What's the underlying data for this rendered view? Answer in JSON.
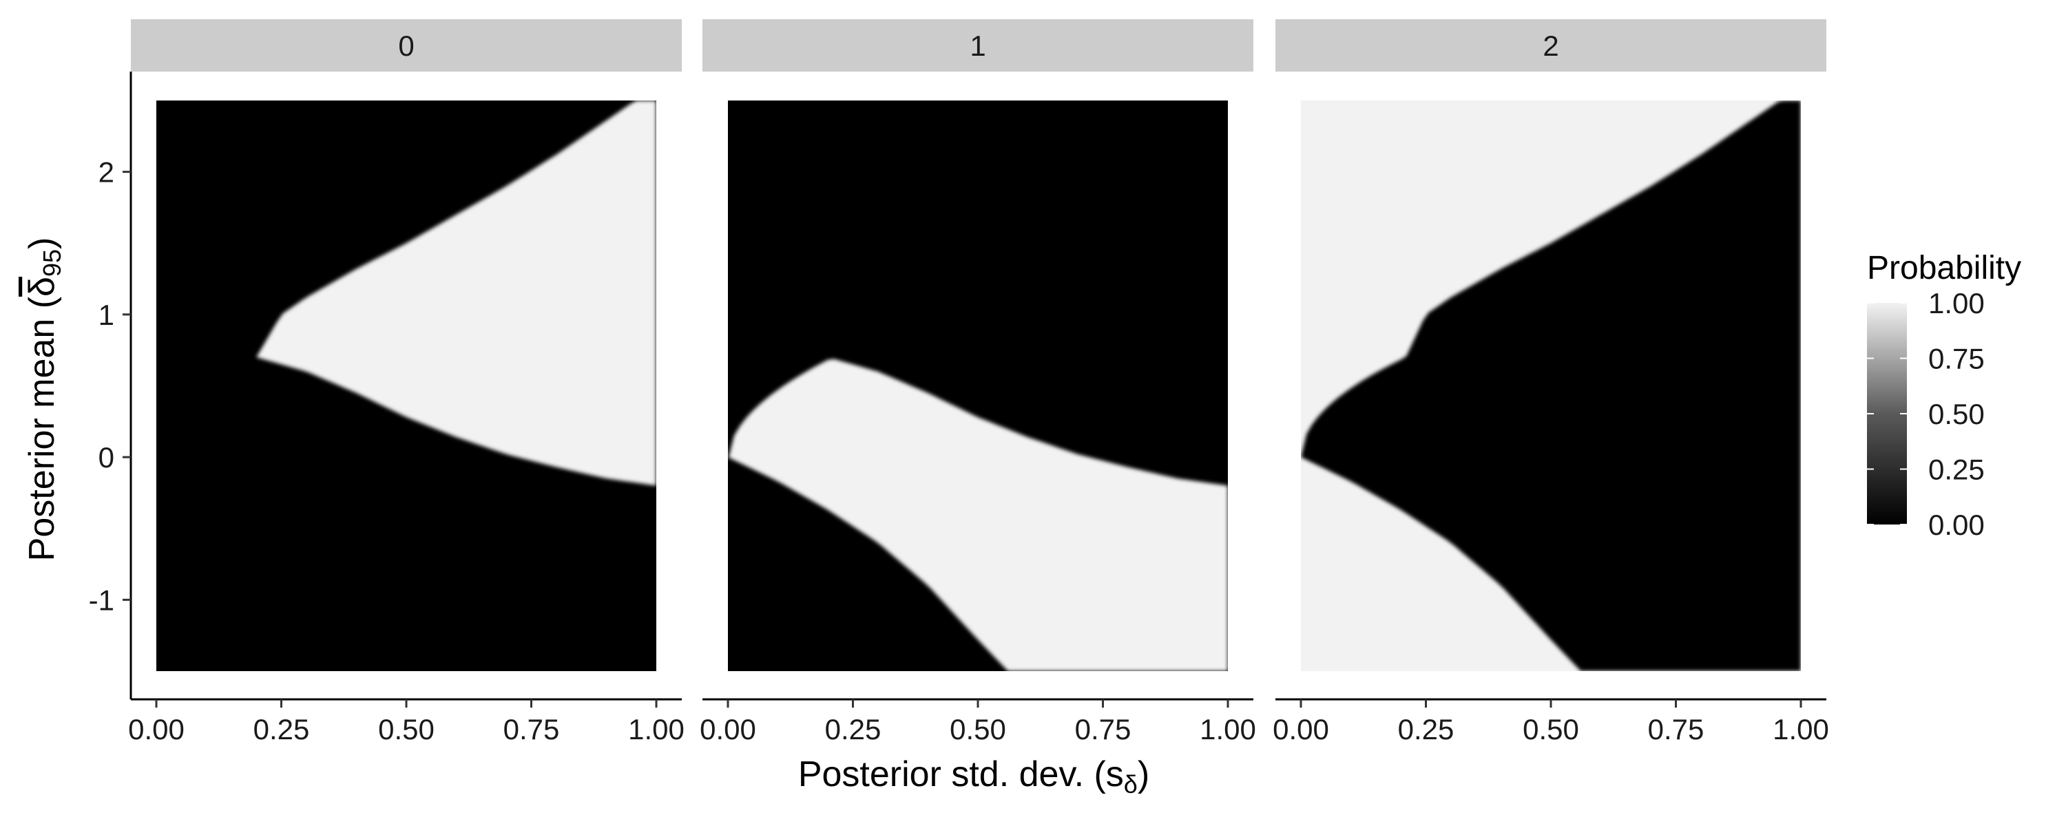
{
  "chart_data": {
    "type": "heatmap",
    "facets": [
      {
        "label": "0",
        "boundaries": "upper_and_lower",
        "fill_between": "high"
      },
      {
        "label": "1",
        "boundaries": "upper_and_lower",
        "fill_between": "high",
        "cutoff": 0.2
      },
      {
        "label": "2",
        "boundaries": "upper_and_lower",
        "fill_between": "low"
      }
    ],
    "x": {
      "label_prefix": "Posterior std. dev. (s",
      "label_sub": "δ",
      "label_suffix": ")",
      "range": [
        0,
        1
      ],
      "ticks": [
        0,
        0.25,
        0.5,
        0.75,
        1
      ],
      "tick_labels": [
        "0.00",
        "0.25",
        "0.50",
        "0.75",
        "1.00"
      ]
    },
    "y": {
      "label_prefix": "Posterior mean (",
      "label_symbol": "δ",
      "label_sub": "95",
      "label_suffix": ")",
      "range": [
        -1.5,
        2.5
      ],
      "ticks": [
        -1,
        0,
        1,
        2
      ],
      "tick_labels": [
        "-1",
        "0",
        "1",
        "2"
      ]
    },
    "boundary_curves": {
      "upper_x": [
        0,
        0.05,
        0.1,
        0.15,
        0.2,
        0.25,
        0.3,
        0.4,
        0.5,
        0.6,
        0.7,
        0.8,
        0.9,
        1.0
      ],
      "upper_y": [
        0,
        0.22,
        0.38,
        0.5,
        0.65,
        1.0,
        1.12,
        1.32,
        1.5,
        1.7,
        1.9,
        2.12,
        2.36,
        2.6
      ],
      "lower_x": [
        0,
        0.1,
        0.2,
        0.3,
        0.4,
        0.5,
        0.6,
        0.7,
        0.8,
        0.9,
        1.0
      ],
      "lower_y": [
        0.7,
        0.7,
        0.7,
        0.6,
        0.45,
        0.28,
        0.14,
        0.02,
        -0.07,
        -0.15,
        -0.2
      ],
      "bottom_x": [
        0,
        0.1,
        0.2,
        0.3,
        0.4,
        0.5,
        0.56
      ],
      "bottom_y": [
        0,
        -0.17,
        -0.37,
        -0.6,
        -0.9,
        -1.28,
        -1.5
      ]
    },
    "legend": {
      "title": "Probability",
      "placement": "right",
      "values": [
        1.0,
        0.75,
        0.5,
        0.25,
        0.0
      ],
      "labels": [
        "1.00",
        "0.75",
        "0.50",
        "0.25",
        "0.00"
      ],
      "low_color": "#000000",
      "high_color": "#f2f2f2"
    },
    "colors": {
      "strip_bg": "#cccccc",
      "high": "#f2f2f2",
      "low": "#000000"
    }
  }
}
